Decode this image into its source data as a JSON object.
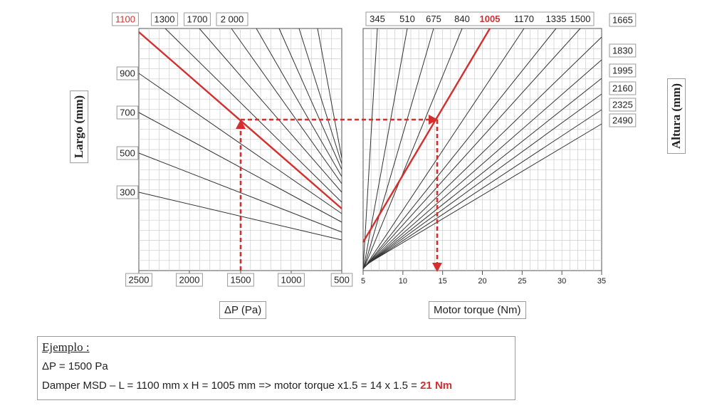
{
  "chart_data": [
    {
      "type": "line",
      "title": "",
      "xlabel": "ΔP (Pa)",
      "ylabel": "Largo (mm)",
      "x_ticks": [
        "2500",
        "2000",
        "1500",
        "1000",
        "500"
      ],
      "y_ticks": [
        "1100",
        "900",
        "700",
        "500",
        "300"
      ],
      "series_labels": [
        "1100",
        "1300",
        "1700",
        "2 000"
      ],
      "highlight": "1100",
      "series_count": 12,
      "grid": true
    },
    {
      "type": "line",
      "title": "",
      "xlabel": "Motor torque (Nm)",
      "ylabel": "Altura (mm)",
      "x_ticks": [
        "5",
        "10",
        "15",
        "20",
        "25",
        "30",
        "35"
      ],
      "xlim": [
        5,
        35
      ],
      "series_labels": [
        "345",
        "510",
        "675",
        "840",
        "1005",
        "1170",
        "1335",
        "1500",
        "1665",
        "1830",
        "1995",
        "2160",
        "2325",
        "2490"
      ],
      "highlight": "1005",
      "grid": true
    }
  ],
  "example": {
    "title": "Ejemplo :",
    "line1": "ΔP  = 1500 Pa",
    "line2_text": "Damper MSD  –  L = 1100 mm  x H = 1005 mm => motor torque x1.5 = 14 x 1.5 = ",
    "line2_result": "21 Nm"
  },
  "colors": {
    "highlight": "#d32f2f",
    "lines": "#333333",
    "grid": "#cccccc"
  }
}
